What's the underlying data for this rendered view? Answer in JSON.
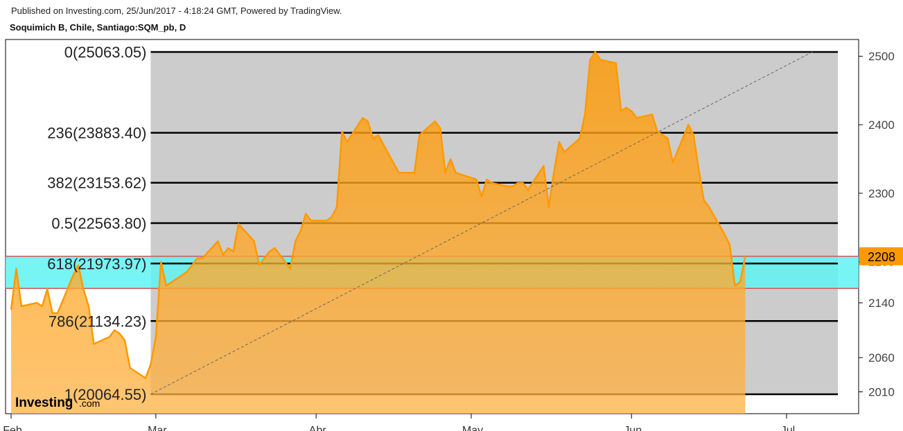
{
  "header": {
    "published": "Published on Investing.com, 25/Jun/2017 - 4:18:24 GMT, Powered by TradingView.",
    "symbol": "Soquimich B, Chile, Santiago:SQM_pb, D"
  },
  "branding": {
    "logo_main": "Investing",
    "logo_suffix": ".com"
  },
  "chart_data": {
    "type": "area",
    "price_scale": {
      "min": 19800,
      "max": 25150,
      "ticks": [
        25000,
        24000,
        23000,
        22000,
        21400,
        20600,
        20100
      ],
      "tick_labels": [
        "2500",
        "2400",
        "2300",
        "2200",
        "2140",
        "2060",
        "2010"
      ]
    },
    "last_price_label": "2208",
    "x_labels": [
      "Feb",
      "Mar",
      "Abr",
      "May",
      "Jun",
      "Jul"
    ],
    "fib_levels": [
      {
        "label": "0(25063.05)",
        "value": 25063.05
      },
      {
        "label": "236(23883.40)",
        "value": 23883.4
      },
      {
        "label": "382(23153.62)",
        "value": 23153.62
      },
      {
        "label": "0.5(22563.80)",
        "value": 22563.8
      },
      {
        "label": "618(21973.97)",
        "value": 21973.97
      },
      {
        "label": "786(21134.23)",
        "value": 21134.23
      },
      {
        "label": "1(20064.55)",
        "value": 20064.55
      }
    ],
    "highlight_band": {
      "low": 21610,
      "high": 22080
    },
    "fib_area": {
      "start": "2017-02-28",
      "end": "2017-07-06"
    },
    "trend_line": {
      "from": [
        "2017-02-28",
        20064.55
      ],
      "to": [
        "2017-07-06",
        25063.05
      ]
    },
    "series": [
      {
        "points": [
          [
            "2017-02-01",
            21300
          ],
          [
            "2017-02-02",
            21900
          ],
          [
            "2017-02-03",
            21350
          ],
          [
            "2017-02-06",
            21400
          ],
          [
            "2017-02-07",
            21350
          ],
          [
            "2017-02-08",
            21600
          ],
          [
            "2017-02-09",
            21250
          ],
          [
            "2017-02-10",
            21250
          ],
          [
            "2017-02-13",
            21800
          ],
          [
            "2017-02-14",
            21950
          ],
          [
            "2017-02-15",
            21600
          ],
          [
            "2017-02-16",
            21350
          ],
          [
            "2017-02-17",
            20800
          ],
          [
            "2017-02-20",
            20900
          ],
          [
            "2017-02-21",
            21000
          ],
          [
            "2017-02-22",
            20950
          ],
          [
            "2017-02-23",
            20850
          ],
          [
            "2017-02-24",
            20450
          ],
          [
            "2017-02-27",
            20300
          ],
          [
            "2017-02-28",
            20500
          ],
          [
            "2017-03-01",
            20900
          ],
          [
            "2017-03-02",
            22000
          ],
          [
            "2017-03-03",
            21650
          ],
          [
            "2017-03-06",
            21800
          ],
          [
            "2017-03-07",
            21850
          ],
          [
            "2017-03-08",
            21950
          ],
          [
            "2017-03-09",
            22050
          ],
          [
            "2017-03-10",
            22050
          ],
          [
            "2017-03-13",
            22300
          ],
          [
            "2017-03-14",
            22100
          ],
          [
            "2017-03-15",
            22200
          ],
          [
            "2017-03-16",
            22150
          ],
          [
            "2017-03-17",
            22550
          ],
          [
            "2017-03-20",
            22300
          ],
          [
            "2017-03-21",
            21950
          ],
          [
            "2017-03-22",
            22050
          ],
          [
            "2017-03-23",
            22150
          ],
          [
            "2017-03-24",
            22200
          ],
          [
            "2017-03-27",
            21900
          ],
          [
            "2017-03-28",
            22300
          ],
          [
            "2017-03-29",
            22450
          ],
          [
            "2017-03-30",
            22700
          ],
          [
            "2017-03-31",
            22600
          ],
          [
            "2017-04-03",
            22600
          ],
          [
            "2017-04-04",
            22650
          ],
          [
            "2017-04-05",
            22800
          ],
          [
            "2017-04-06",
            23900
          ],
          [
            "2017-04-07",
            23750
          ],
          [
            "2017-04-10",
            24100
          ],
          [
            "2017-04-11",
            24050
          ],
          [
            "2017-04-12",
            23800
          ],
          [
            "2017-04-13",
            23850
          ],
          [
            "2017-04-17",
            23300
          ],
          [
            "2017-04-18",
            23300
          ],
          [
            "2017-04-19",
            23300
          ],
          [
            "2017-04-20",
            23300
          ],
          [
            "2017-04-21",
            23850
          ],
          [
            "2017-04-24",
            24050
          ],
          [
            "2017-04-25",
            23950
          ],
          [
            "2017-04-26",
            23300
          ],
          [
            "2017-04-27",
            23500
          ],
          [
            "2017-04-28",
            23300
          ],
          [
            "2017-05-02",
            23200
          ],
          [
            "2017-05-03",
            22950
          ],
          [
            "2017-05-04",
            23200
          ],
          [
            "2017-05-05",
            23150
          ],
          [
            "2017-05-08",
            23100
          ],
          [
            "2017-05-09",
            23100
          ],
          [
            "2017-05-10",
            23150
          ],
          [
            "2017-05-11",
            23150
          ],
          [
            "2017-05-12",
            23050
          ],
          [
            "2017-05-15",
            23400
          ],
          [
            "2017-05-16",
            22800
          ],
          [
            "2017-05-17",
            23300
          ],
          [
            "2017-05-18",
            23750
          ],
          [
            "2017-05-19",
            23600
          ],
          [
            "2017-05-22",
            23800
          ],
          [
            "2017-05-23",
            24150
          ],
          [
            "2017-05-24",
            24950
          ],
          [
            "2017-05-25",
            25063
          ],
          [
            "2017-05-26",
            24950
          ],
          [
            "2017-05-29",
            24900
          ],
          [
            "2017-05-30",
            24200
          ],
          [
            "2017-05-31",
            24250
          ],
          [
            "2017-06-01",
            24200
          ],
          [
            "2017-06-02",
            24100
          ],
          [
            "2017-06-05",
            24150
          ],
          [
            "2017-06-06",
            23900
          ],
          [
            "2017-06-07",
            23850
          ],
          [
            "2017-06-08",
            23800
          ],
          [
            "2017-06-09",
            23450
          ],
          [
            "2017-06-12",
            24000
          ],
          [
            "2017-06-13",
            23850
          ],
          [
            "2017-06-14",
            23350
          ],
          [
            "2017-06-15",
            22900
          ],
          [
            "2017-06-16",
            22800
          ],
          [
            "2017-06-19",
            22400
          ],
          [
            "2017-06-20",
            22250
          ],
          [
            "2017-06-21",
            21650
          ],
          [
            "2017-06-22",
            21700
          ],
          [
            "2017-06-23",
            22080
          ]
        ]
      }
    ]
  },
  "colors": {
    "fib_bg": "#cccccc",
    "band": "#5ff2f2",
    "band_border": "#d9534f",
    "area_fill": "#ffa31a",
    "area_stroke": "#ff9900",
    "price_tag": "#ff9900"
  }
}
